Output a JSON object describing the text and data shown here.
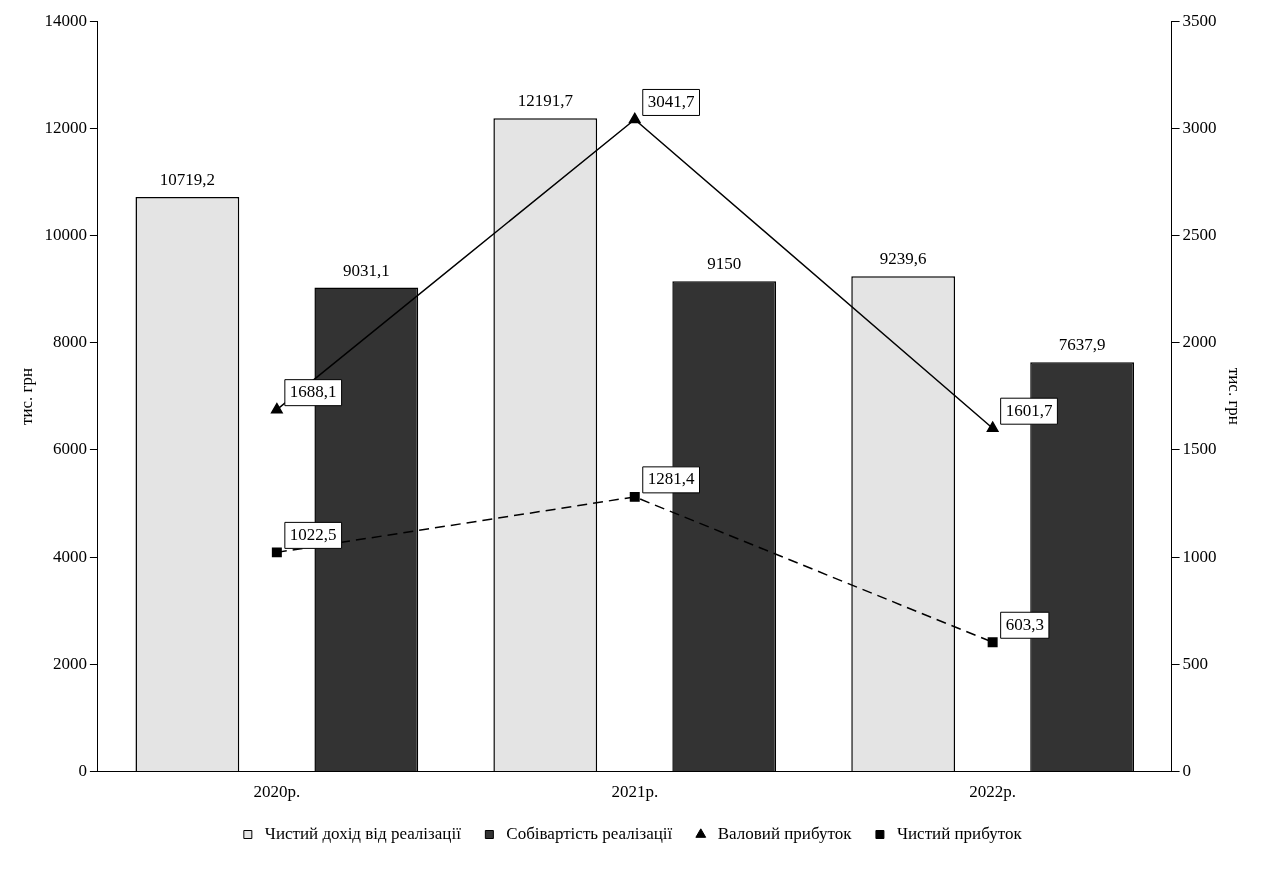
{
  "chart_data": {
    "type": "bar",
    "categories": [
      "2020р.",
      "2021р.",
      "2022р."
    ],
    "series": [
      {
        "name": "Чистий дохід від реалізації",
        "color": "#e4e4e4",
        "values": [
          10719.2,
          12191.7,
          9239.6
        ],
        "value_labels": [
          "10719,2",
          "12191,7",
          "9239,6"
        ]
      },
      {
        "name": "Собівартість реалізації",
        "color": "#333333",
        "values": [
          9031.1,
          9150,
          7637.9
        ],
        "value_labels": [
          "9031,1",
          "9150",
          "7637,9"
        ]
      },
      {
        "name": "Валовий прибуток",
        "type": "line",
        "axis": "y2",
        "color": "#000000",
        "marker": "triangle",
        "line_style": "solid",
        "values": [
          1688.1,
          3041.7,
          1601.7
        ],
        "value_labels": [
          "1688,1",
          "3041,7",
          "1601,7"
        ]
      },
      {
        "name": "Чистий прибуток",
        "type": "line",
        "axis": "y2",
        "color": "#000000",
        "marker": "square",
        "line_style": "dashed",
        "values": [
          1022.5,
          1281.4,
          603.3
        ],
        "value_labels": [
          "1022,5",
          "1281,4",
          "603,3"
        ]
      }
    ],
    "ylabel": "тис. грн",
    "y2label": "тис. грн",
    "ylim": [
      0,
      14000
    ],
    "yticks": [
      0,
      2000,
      4000,
      6000,
      8000,
      10000,
      12000,
      14000
    ],
    "y2lim": [
      0,
      3500
    ],
    "y2ticks": [
      0,
      500,
      1000,
      1500,
      2000,
      2500,
      3000,
      3500
    ],
    "grid": false,
    "legend": "bottom"
  }
}
